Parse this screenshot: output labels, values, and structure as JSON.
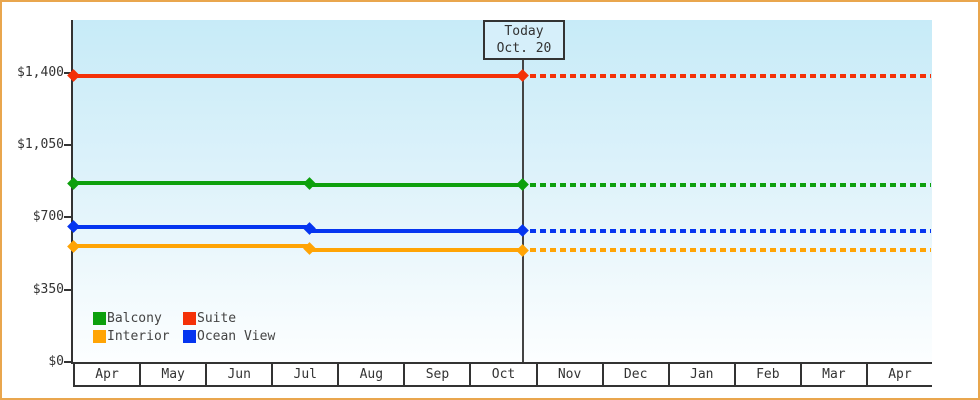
{
  "chart_data": {
    "type": "line",
    "description": "Cruise cabin price history by category with dashed projection after today",
    "y_axis": {
      "range": [
        0,
        1400
      ],
      "ticks": [
        {
          "label": "$1,400",
          "value": 1400
        },
        {
          "label": "$1,050",
          "value": 1050
        },
        {
          "label": "$700",
          "value": 700
        },
        {
          "label": "$350",
          "value": 350
        },
        {
          "label": "$0",
          "value": 0
        }
      ]
    },
    "x_axis": {
      "months": [
        "Apr",
        "May",
        "Jun",
        "Jul",
        "Aug",
        "Sep",
        "Oct",
        "Nov",
        "Dec",
        "Jan",
        "Feb",
        "Mar",
        "Apr"
      ]
    },
    "today": {
      "label": "Today",
      "date": "Oct. 20"
    },
    "series": [
      {
        "name": "Suite",
        "color": "#f43108",
        "segments": [
          {
            "from": "start",
            "to": "today",
            "value": 1385
          }
        ],
        "markers": [
          "start",
          "today"
        ],
        "projection": {
          "from": "today",
          "to": "end",
          "value": 1385
        }
      },
      {
        "name": "Balcony",
        "color": "#0da00d",
        "segments": [
          {
            "from": "start",
            "to": "jul",
            "value": 865
          },
          {
            "from": "jul",
            "to": "today",
            "value": 857
          }
        ],
        "markers": [
          "start",
          "jul",
          "today"
        ],
        "projection": {
          "from": "today",
          "to": "end",
          "value": 857
        }
      },
      {
        "name": "Ocean View",
        "color": "#0535f0",
        "segments": [
          {
            "from": "start",
            "to": "jul",
            "value": 655
          },
          {
            "from": "jul",
            "to": "today",
            "value": 635
          }
        ],
        "markers": [
          "start",
          "jul",
          "today"
        ],
        "projection": {
          "from": "today",
          "to": "end",
          "value": 635
        }
      },
      {
        "name": "Interior",
        "color": "#ffa405",
        "segments": [
          {
            "from": "start",
            "to": "jul",
            "value": 560
          },
          {
            "from": "jul",
            "to": "today",
            "value": 540
          }
        ],
        "markers": [
          "start",
          "jul",
          "today"
        ],
        "projection": {
          "from": "today",
          "to": "end",
          "value": 540
        }
      }
    ],
    "legend": {
      "position": "bottom-left",
      "items": [
        {
          "label": "Balcony",
          "color": "#0da00d"
        },
        {
          "label": "Suite",
          "color": "#f43108"
        },
        {
          "label": "Interior",
          "color": "#ffa405"
        },
        {
          "label": "Ocean View",
          "color": "#0535f0"
        }
      ]
    },
    "grid": false
  },
  "colors": {
    "frame_border": "#e9a64e",
    "axis": "#333333",
    "today_line": "#444444",
    "today_box_fill": "#d6effa",
    "plot_gradient_top": "#c7ebf8",
    "plot_gradient_bottom": "#fcfeff"
  }
}
